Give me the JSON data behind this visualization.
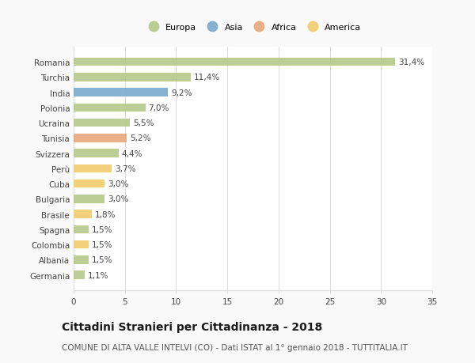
{
  "categories": [
    "Romania",
    "Turchia",
    "India",
    "Polonia",
    "Ucraina",
    "Tunisia",
    "Svizzera",
    "Perù",
    "Cuba",
    "Bulgaria",
    "Brasile",
    "Spagna",
    "Colombia",
    "Albania",
    "Germania"
  ],
  "values": [
    31.4,
    11.4,
    9.2,
    7.0,
    5.5,
    5.2,
    4.4,
    3.7,
    3.0,
    3.0,
    1.8,
    1.5,
    1.5,
    1.5,
    1.1
  ],
  "labels": [
    "31,4%",
    "11,4%",
    "9,2%",
    "7,0%",
    "5,5%",
    "5,2%",
    "4,4%",
    "3,7%",
    "3,0%",
    "3,0%",
    "1,8%",
    "1,5%",
    "1,5%",
    "1,5%",
    "1,1%"
  ],
  "continents": [
    "Europa",
    "Europa",
    "Asia",
    "Europa",
    "Europa",
    "Africa",
    "Europa",
    "America",
    "America",
    "Europa",
    "America",
    "Europa",
    "America",
    "Europa",
    "Europa"
  ],
  "continent_colors": {
    "Europa": "#b5c98a",
    "Asia": "#7aabcc",
    "Africa": "#e8a87c",
    "America": "#f2cc6e"
  },
  "legend_order": [
    "Europa",
    "Asia",
    "Africa",
    "America"
  ],
  "xlim": [
    0,
    35
  ],
  "xticks": [
    0,
    5,
    10,
    15,
    20,
    25,
    30,
    35
  ],
  "title": "Cittadini Stranieri per Cittadinanza - 2018",
  "subtitle": "COMUNE DI ALTA VALLE INTELVI (CO) - Dati ISTAT al 1° gennaio 2018 - TUTTITALIA.IT",
  "background_color": "#f9f9f9",
  "bar_background": "#ffffff",
  "grid_color": "#dddddd",
  "label_fontsize": 7.5,
  "tick_fontsize": 7.5,
  "title_fontsize": 10,
  "subtitle_fontsize": 7.5
}
